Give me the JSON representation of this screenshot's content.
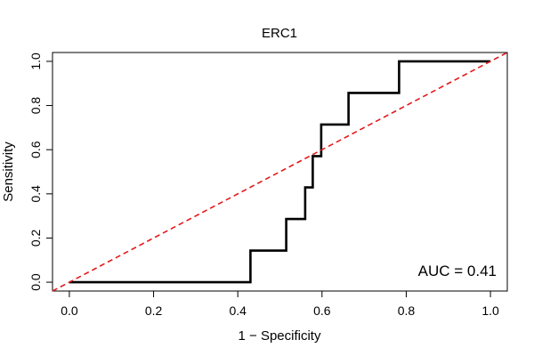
{
  "chart_data": {
    "type": "line",
    "title": "ERC1",
    "xlabel": "1 − Specificity",
    "ylabel": "Sensitivity",
    "xlim": [
      -0.04,
      1.04
    ],
    "ylim": [
      -0.04,
      1.04
    ],
    "grid": false,
    "x_ticks": [
      "0.0",
      "0.2",
      "0.4",
      "0.6",
      "0.8",
      "1.0"
    ],
    "y_ticks": [
      "0.0",
      "0.2",
      "0.4",
      "0.6",
      "0.8",
      "1.0"
    ],
    "series": [
      {
        "style": "step",
        "color": "#000000",
        "points": [
          [
            0.0,
            0.0
          ],
          [
            0.43,
            0.0
          ],
          [
            0.43,
            0.143
          ],
          [
            0.515,
            0.143
          ],
          [
            0.515,
            0.286
          ],
          [
            0.56,
            0.286
          ],
          [
            0.56,
            0.429
          ],
          [
            0.578,
            0.429
          ],
          [
            0.578,
            0.571
          ],
          [
            0.598,
            0.571
          ],
          [
            0.598,
            0.714
          ],
          [
            0.663,
            0.714
          ],
          [
            0.663,
            0.857
          ],
          [
            0.783,
            0.857
          ],
          [
            0.783,
            1.0
          ],
          [
            1.0,
            1.0
          ]
        ]
      },
      {
        "style": "dashed",
        "color": "#e31a1c",
        "points": [
          [
            -0.04,
            -0.04
          ],
          [
            1.04,
            1.04
          ]
        ]
      }
    ],
    "annotations": [
      {
        "text": "AUC = 0.41",
        "position": "bottom-right"
      }
    ]
  }
}
